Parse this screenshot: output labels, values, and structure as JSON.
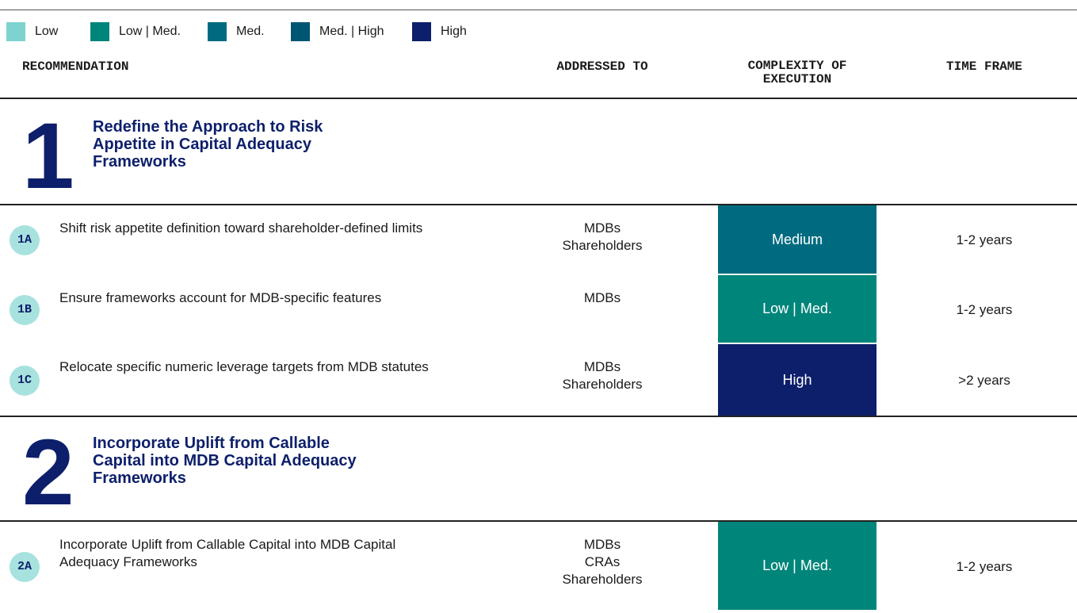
{
  "legend": [
    {
      "label": "Low",
      "color": "#7fd3cf"
    },
    {
      "label": "Low | Med.",
      "color": "#00857a"
    },
    {
      "label": "Med.",
      "color": "#006b80"
    },
    {
      "label": "Med. | High",
      "color": "#005672"
    },
    {
      "label": "High",
      "color": "#0d1f6b"
    }
  ],
  "header": {
    "columns": [
      "RECOMMENDATION",
      "ADDRESSED TO",
      "COMPLEXITY OF EXECUTION",
      "TIME FRAME"
    ]
  },
  "sections": [
    {
      "number": "1",
      "title": "Redefine the Approach to Risk Appetite in Capital Adequacy Frameworks",
      "rows": [
        {
          "id": "1A",
          "text": "Shift risk appetite definition toward shareholder-defined limits",
          "addressed_to": [
            "MDBs",
            "Shareholders"
          ],
          "complexity": "Medium",
          "color": "#006b80",
          "time_frame": "1-2 years"
        },
        {
          "id": "1B",
          "text": "Ensure frameworks account for MDB-specific features",
          "addressed_to": [
            "MDBs"
          ],
          "complexity": "Low | Med.",
          "color": "#00857a",
          "time_frame": "1-2 years"
        },
        {
          "id": "1C",
          "text": "Relocate specific numeric leverage targets from MDB statutes",
          "addressed_to": [
            "MDBs",
            "Shareholders"
          ],
          "complexity": "High",
          "color": "#0d1f6b",
          "time_frame": ">2 years"
        }
      ]
    },
    {
      "number": "2",
      "title": "Incorporate Uplift from Callable Capital into MDB Capital Adequacy Frameworks",
      "rows": [
        {
          "id": "2A",
          "text": "Incorporate Uplift from Callable Capital into MDB Capital Adequacy Frameworks",
          "addressed_to": [
            "MDBs",
            "CRAs",
            "Shareholders"
          ],
          "complexity": "Low | Med.",
          "color": "#00857a",
          "time_frame": "1-2 years"
        }
      ]
    }
  ]
}
